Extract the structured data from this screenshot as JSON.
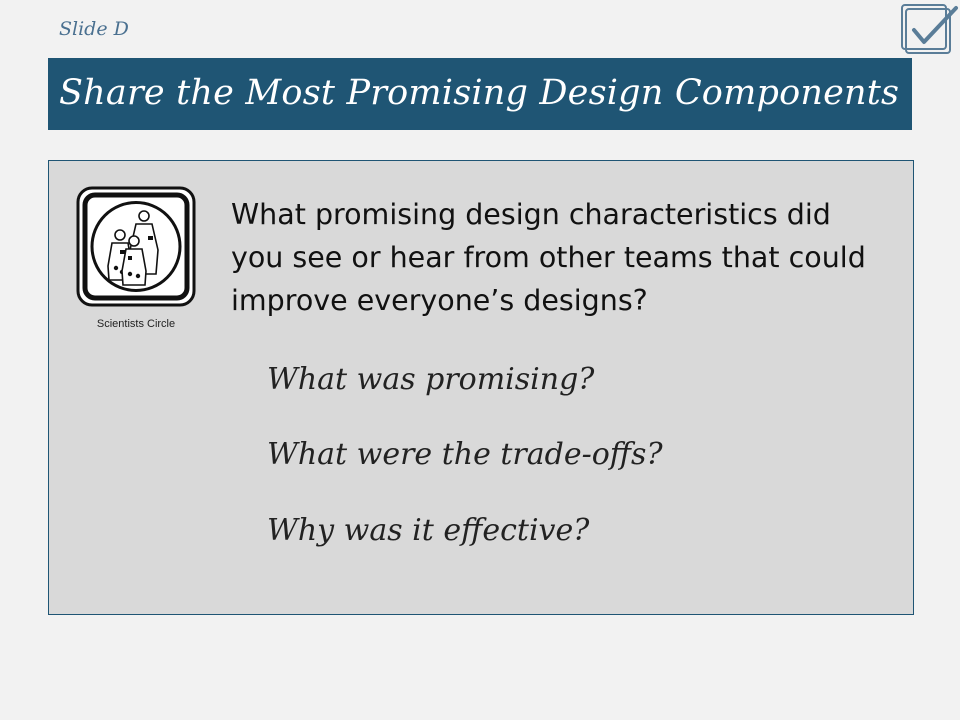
{
  "slide": {
    "label": "Slide D",
    "title": "Share the Most Promising Design Components"
  },
  "header": {
    "icon": "checkbox-check-icon"
  },
  "content": {
    "logo": {
      "icon": "scientists-circle-logo",
      "caption": "Scientists Circle"
    },
    "question": "What promising design characteristics did you see or hear from other teams that could improve everyone’s designs?",
    "prompts": [
      "What was promising?",
      "What were the trade-offs?",
      "Why was it effective?"
    ]
  },
  "colors": {
    "title_bar": "#1f5574",
    "content_box": "#d9d9d9",
    "background": "#f2f2f2",
    "slide_label": "#4a7090"
  }
}
